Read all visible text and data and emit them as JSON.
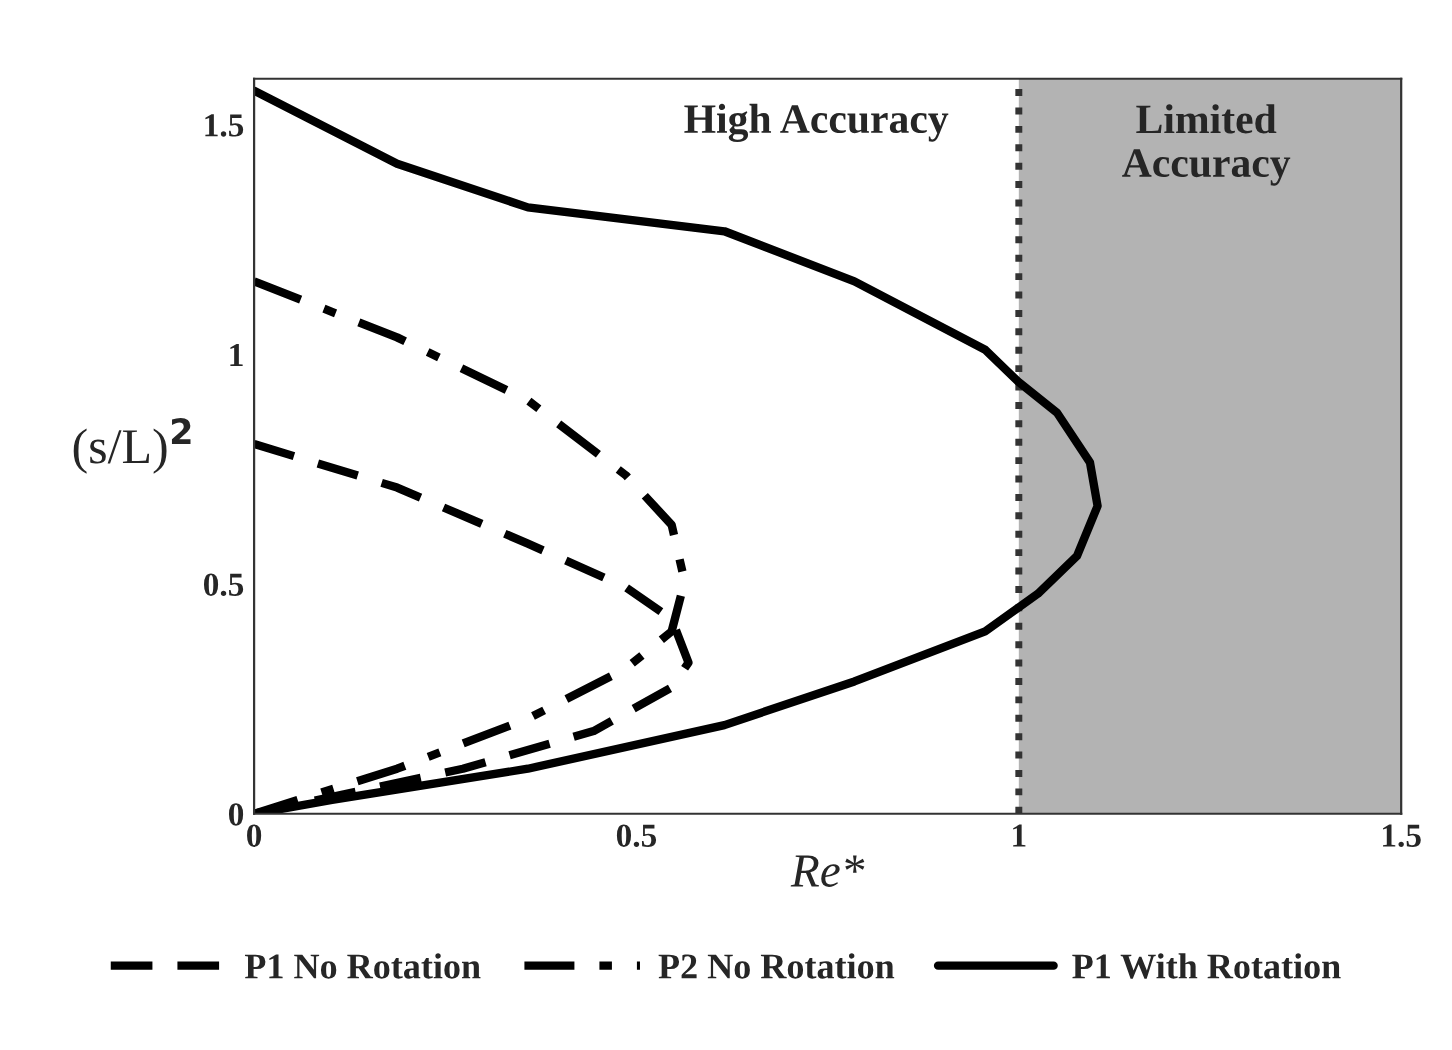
{
  "chart_data": {
    "type": "line",
    "xlabel": "Re*",
    "ylabel": "(s/L)$^{2}$",
    "xlim": [
      0,
      1.5
    ],
    "ylim": [
      0,
      1.6
    ],
    "xticks": [
      0,
      0.5,
      1,
      1.5
    ],
    "yticks": [
      0,
      0.5,
      1,
      1.5
    ],
    "grid": false,
    "legend": "bottom",
    "series": [
      {
        "name": "P1 No Rotation",
        "color": "#000000",
        "line_style": "dashed",
        "x": [
          0,
          0.187,
          0.358,
          0.486,
          0.546,
          0.568,
          0.546,
          0.444,
          0.273,
          0
        ],
        "values": [
          0.805,
          0.71,
          0.588,
          0.493,
          0.424,
          0.329,
          0.275,
          0.18,
          0.098,
          0
        ]
      },
      {
        "name": "P2 No Rotation",
        "color": "#000000",
        "line_style": "dashdot",
        "x": [
          0,
          0.187,
          0.358,
          0.486,
          0.546,
          0.563,
          0.546,
          0.486,
          0.358,
          0.187,
          0
        ],
        "values": [
          1.159,
          1.037,
          0.9,
          0.737,
          0.629,
          0.506,
          0.397,
          0.316,
          0.207,
          0.098,
          0
        ]
      },
      {
        "name": "P1 With Rotation",
        "color": "#000000",
        "line_style": "solid",
        "x": [
          0,
          0.187,
          0.358,
          0.615,
          0.785,
          0.956,
          0.999,
          1.05,
          1.093,
          1.103,
          1.076,
          1.025,
          0.956,
          0.785,
          0.615,
          0.358,
          0.102,
          0
        ],
        "values": [
          1.574,
          1.415,
          1.32,
          1.268,
          1.159,
          1.01,
          0.941,
          0.873,
          0.765,
          0.67,
          0.561,
          0.479,
          0.397,
          0.288,
          0.193,
          0.098,
          0.03,
          0
        ]
      }
    ],
    "ref_lines": [
      {
        "axis": "x",
        "value": 1,
        "color": "#333333",
        "line_style": "dotted"
      }
    ],
    "bands": [
      {
        "axis": "x",
        "from": 1,
        "to": 1.5,
        "color": "#b3b3b3"
      }
    ],
    "annotations": [
      "High Accuracy",
      "Limited\nAccuracy"
    ]
  }
}
